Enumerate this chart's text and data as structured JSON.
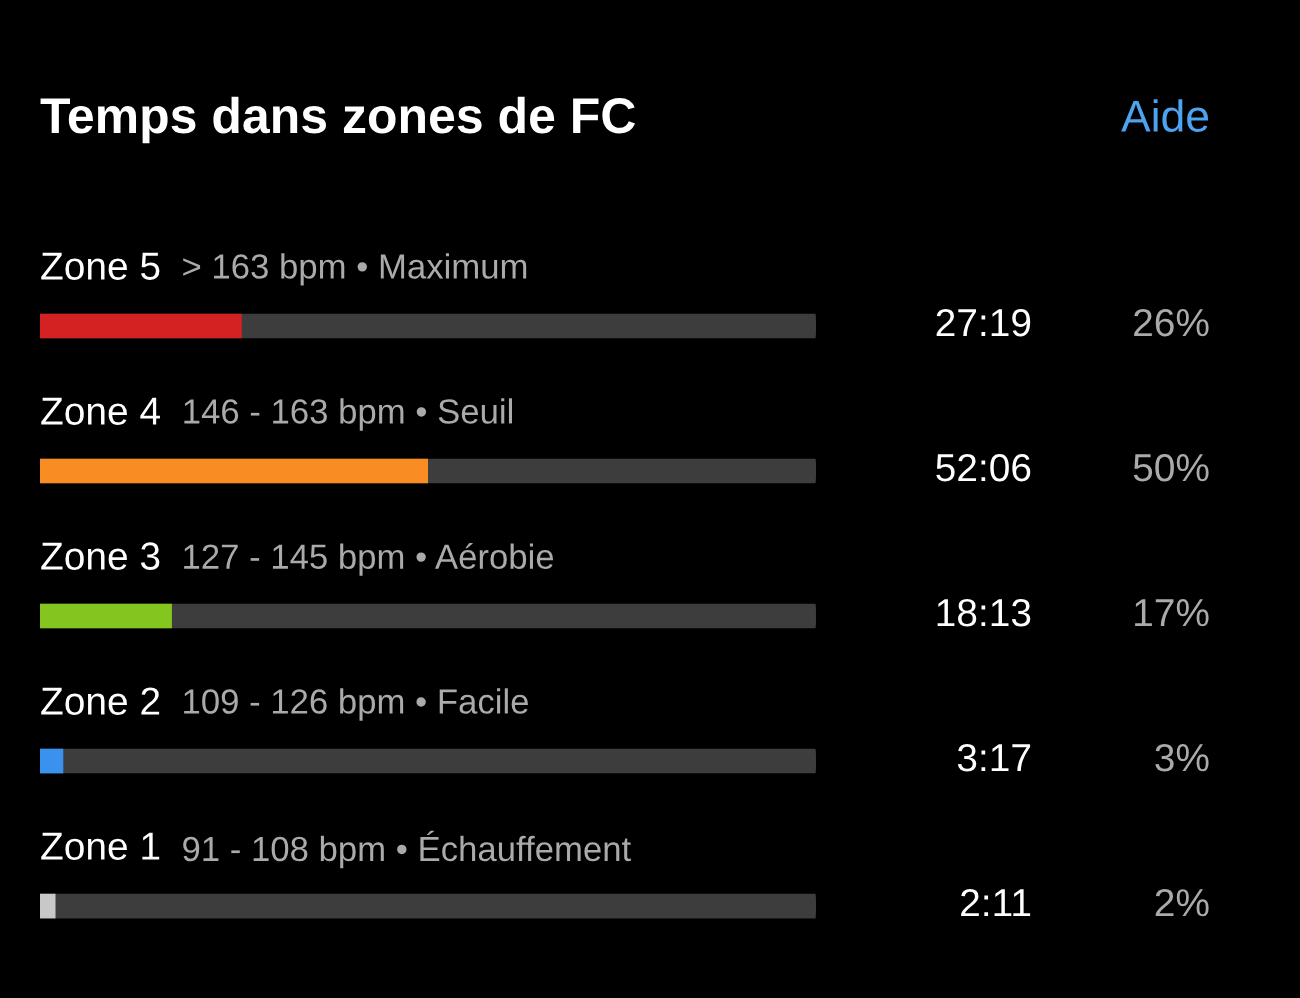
{
  "chart_data": {
    "type": "bar",
    "orientation": "horizontal",
    "title": "Temps dans zones de FC",
    "categories": [
      "Zone 5",
      "Zone 4",
      "Zone 3",
      "Zone 2",
      "Zone 1"
    ],
    "values": [
      26,
      50,
      17,
      3,
      2
    ],
    "colors": [
      "#d42222",
      "#f98c23",
      "#84c51f",
      "#3b92ee",
      "#c8c8c8"
    ],
    "value_labels": [
      "26%",
      "50%",
      "17%",
      "3%",
      "2%"
    ],
    "xlim": [
      0,
      100
    ],
    "annotations": [
      "Aide",
      "> 163 bpm • Maximum",
      "27:19",
      "146 - 163 bpm • Seuil",
      "52:06",
      "127 - 145 bpm • Aérobie",
      "18:13",
      "109 - 126 bpm • Facile",
      "3:17",
      "91 - 108 bpm • Échauffement",
      "2:11"
    ]
  }
}
